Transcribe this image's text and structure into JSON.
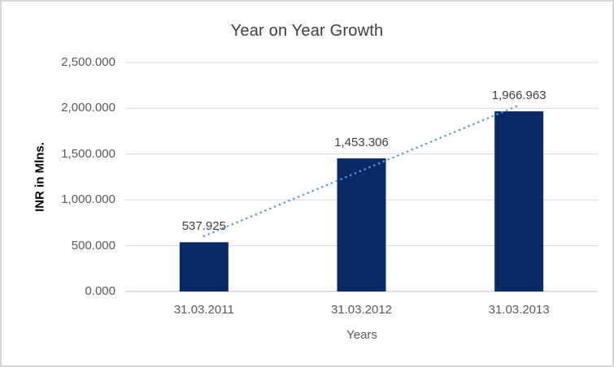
{
  "window": {
    "background": "#ffffff",
    "border_color": "#d7d7d7"
  },
  "chart_data": {
    "type": "bar",
    "title": "Year on Year Growth",
    "xlabel": "Years",
    "ylabel": "INR in Mlns.",
    "categories": [
      "31.03.2011",
      "31.03.2012",
      "31.03.2013"
    ],
    "values": [
      537.925,
      1453.306,
      1966.963
    ],
    "data_labels": [
      "537.925",
      "1,453.306",
      "1,966.963"
    ],
    "y_ticks": [
      {
        "value": 0,
        "label": "0.000"
      },
      {
        "value": 500,
        "label": "500.000"
      },
      {
        "value": 1000,
        "label": "1,000.000"
      },
      {
        "value": 1500,
        "label": "1,500.000"
      },
      {
        "value": 2000,
        "label": "2,000.000"
      },
      {
        "value": 2500,
        "label": "2,500.000"
      }
    ],
    "ylim": [
      0,
      2500
    ],
    "grid": true,
    "legend": "none",
    "colors": {
      "bar": "#0a2a66",
      "gridline": "#d9d9d9",
      "axis_line": "#bfbfbf",
      "title_text": "#404040",
      "axis_text": "#595959",
      "data_label_text": "#404040",
      "ylabel_text": "#000000"
    },
    "trendline": {
      "type": "linear",
      "style": "dotted",
      "color": "#5b9bd5"
    }
  }
}
